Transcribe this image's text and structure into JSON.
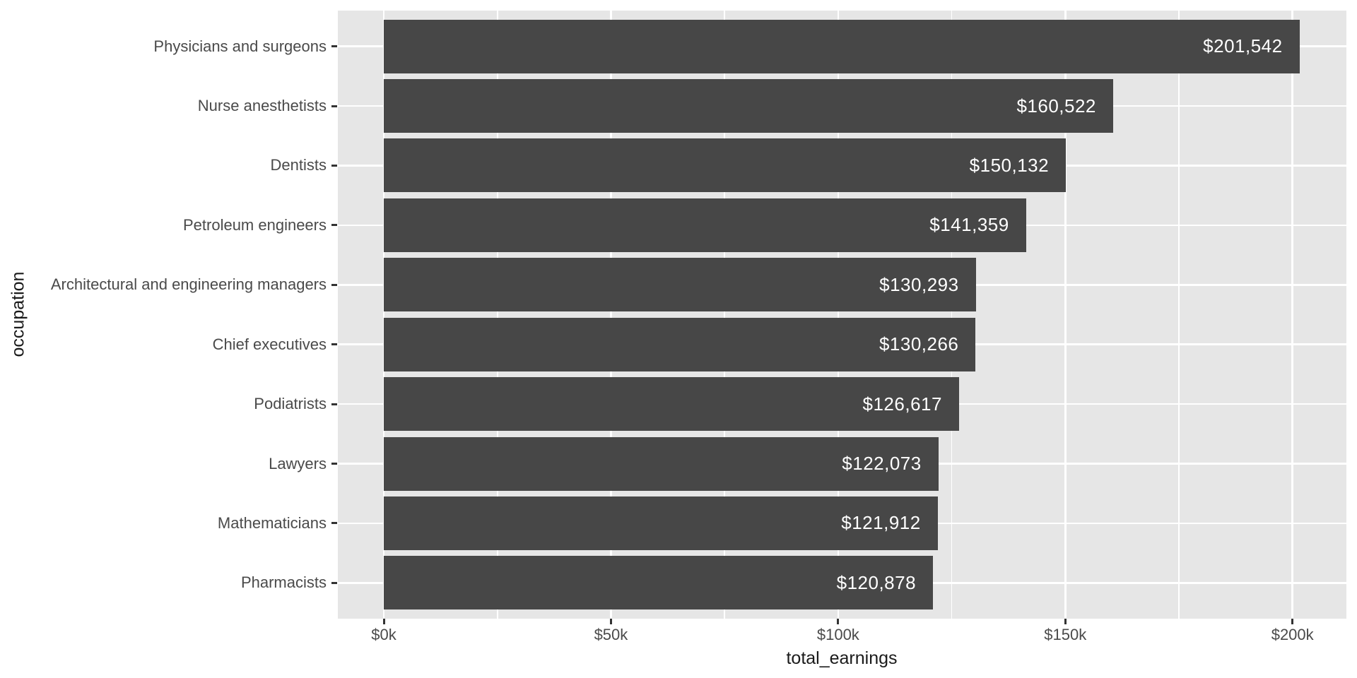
{
  "chart_data": {
    "type": "bar",
    "orientation": "horizontal",
    "title": "",
    "xlabel": "total_earnings",
    "ylabel": "occupation",
    "categories": [
      "Physicians and surgeons",
      "Nurse anesthetists",
      "Dentists",
      "Petroleum engineers",
      "Architectural and engineering managers",
      "Chief executives",
      "Podiatrists",
      "Lawyers",
      "Mathematicians",
      "Pharmacists"
    ],
    "values": [
      201542,
      160522,
      150132,
      141359,
      130293,
      130266,
      126617,
      122073,
      121912,
      120878
    ],
    "bar_labels": [
      "$201,542",
      "$160,522",
      "$150,132",
      "$141,359",
      "$130,293",
      "$130,266",
      "$126,617",
      "$122,073",
      "$121,912",
      "$120,878"
    ],
    "x_axis": {
      "tick_values": [
        0,
        50000,
        100000,
        150000,
        200000
      ],
      "tick_labels": [
        "$0k",
        "$50k",
        "$100k",
        "$150k",
        "$200k"
      ],
      "minor_tick_values": [
        25000,
        75000,
        125000,
        175000
      ],
      "range": [
        0,
        211800
      ]
    },
    "grid": true,
    "legend": false,
    "style": {
      "bar_color": "#474747",
      "panel_bg": "#E6E6E6",
      "grid_color": "#FFFFFF",
      "bar_label_color": "#FFFFFF",
      "axis_text_color": "#4A4A4A",
      "axis_title_color": "#1A1A1A",
      "tick_mark_color": "#333333",
      "outer_bg": "#FFFFFF"
    }
  }
}
